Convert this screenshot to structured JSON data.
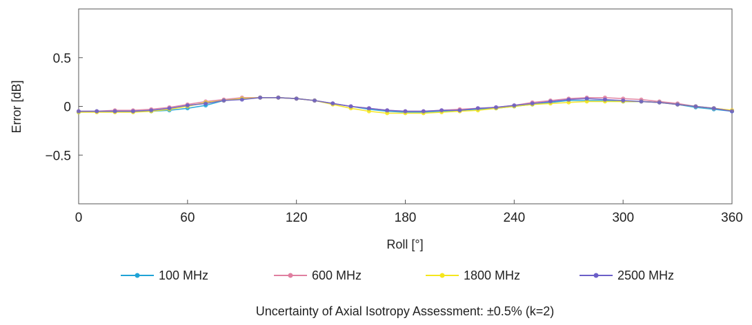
{
  "chart_data": {
    "type": "line",
    "xlabel": "Roll [°]",
    "ylabel": "Error [dB]",
    "xlim": [
      0,
      360
    ],
    "ylim": [
      -1,
      1
    ],
    "x_ticks": [
      0,
      60,
      120,
      180,
      240,
      300,
      360
    ],
    "y_ticks": [
      {
        "value": 0.5,
        "label": "0.5"
      },
      {
        "value": 0,
        "label": "0"
      },
      {
        "value": -0.5,
        "label": "−0.5"
      }
    ],
    "grid": false,
    "legend_position": "bottom",
    "x": [
      0,
      10,
      20,
      30,
      40,
      50,
      60,
      70,
      80,
      90,
      100,
      110,
      120,
      130,
      140,
      150,
      160,
      170,
      180,
      190,
      200,
      210,
      220,
      230,
      240,
      250,
      260,
      270,
      280,
      290,
      300,
      310,
      320,
      330,
      340,
      350,
      360
    ],
    "series": [
      {
        "name": "100 MHz",
        "color": "#1fa3d6",
        "values": [
          -0.06,
          -0.05,
          -0.05,
          -0.05,
          -0.05,
          -0.04,
          -0.02,
          0.01,
          0.06,
          0.08,
          0.09,
          0.09,
          0.08,
          0.06,
          0.03,
          0.0,
          -0.03,
          -0.05,
          -0.06,
          -0.06,
          -0.05,
          -0.04,
          -0.03,
          -0.02,
          0.0,
          0.02,
          0.04,
          0.06,
          0.06,
          0.06,
          0.05,
          0.05,
          0.04,
          0.02,
          -0.01,
          -0.03,
          -0.05
        ]
      },
      {
        "name": "600 MHz",
        "color": "#e07fa0",
        "values": [
          -0.05,
          -0.05,
          -0.04,
          -0.04,
          -0.03,
          -0.01,
          0.02,
          0.05,
          0.07,
          0.09,
          0.09,
          0.09,
          0.08,
          0.06,
          0.03,
          0.0,
          -0.02,
          -0.04,
          -0.05,
          -0.05,
          -0.04,
          -0.03,
          -0.02,
          -0.01,
          0.01,
          0.04,
          0.06,
          0.08,
          0.09,
          0.09,
          0.08,
          0.07,
          0.05,
          0.03,
          0.0,
          -0.02,
          -0.04
        ]
      },
      {
        "name": "1800 MHz",
        "color": "#f5e61c",
        "values": [
          -0.06,
          -0.06,
          -0.06,
          -0.06,
          -0.05,
          -0.03,
          0.0,
          0.04,
          0.06,
          0.08,
          0.09,
          0.09,
          0.08,
          0.06,
          0.02,
          -0.02,
          -0.05,
          -0.07,
          -0.07,
          -0.07,
          -0.06,
          -0.05,
          -0.04,
          -0.02,
          0.0,
          0.02,
          0.03,
          0.04,
          0.05,
          0.05,
          0.05,
          0.05,
          0.04,
          0.02,
          0.0,
          -0.02,
          -0.04
        ]
      },
      {
        "name": "2500 MHz",
        "color": "#6b5ec8",
        "values": [
          -0.05,
          -0.05,
          -0.05,
          -0.05,
          -0.04,
          -0.02,
          0.01,
          0.03,
          0.06,
          0.07,
          0.09,
          0.09,
          0.08,
          0.06,
          0.03,
          0.0,
          -0.02,
          -0.04,
          -0.05,
          -0.05,
          -0.04,
          -0.04,
          -0.02,
          -0.01,
          0.01,
          0.03,
          0.05,
          0.07,
          0.08,
          0.07,
          0.06,
          0.05,
          0.04,
          0.02,
          0.0,
          -0.02,
          -0.05
        ]
      }
    ]
  },
  "caption": "Uncertainty of Axial Isotropy Assessment: ±0.5% (k=2)"
}
